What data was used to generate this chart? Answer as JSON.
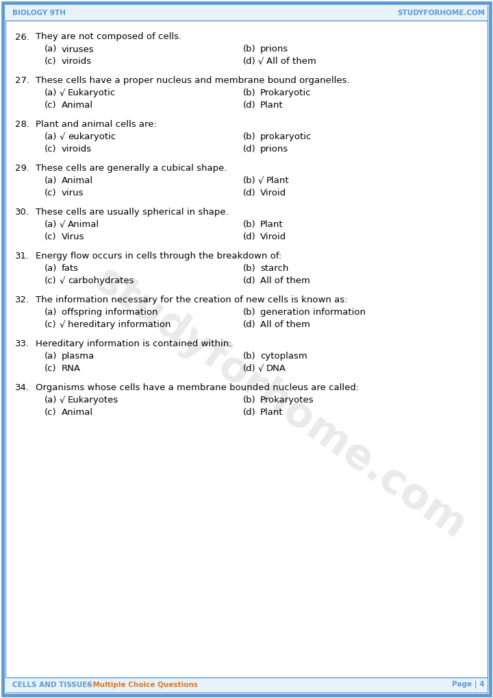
{
  "header_left": "Biology 9th",
  "header_right": "StudyForHome.com",
  "footer_left": "CELLS AND TISSUES",
  "footer_middle": " – Multiple Choice Questions",
  "footer_right": "Page | 4",
  "bg_color": "#ffffff",
  "border_color": "#5b9bd5",
  "header_bg": "#ddeeff",
  "footer_bg": "#ddeeff",
  "watermark_text": "studyforhome.com",
  "questions": [
    {
      "num": "26.",
      "question": "They are not composed of cells.",
      "options": [
        {
          "label": "(a)",
          "check": "",
          "text": "viruses"
        },
        {
          "label": "(b)",
          "check": "",
          "text": "prions"
        },
        {
          "label": "(c)",
          "check": "",
          "text": "viroids"
        },
        {
          "label": "(d)",
          "check": "√",
          "text": "All of them"
        }
      ]
    },
    {
      "num": "27.",
      "question": "These cells have a proper nucleus and membrane bound organelles.",
      "options": [
        {
          "label": "(a)",
          "check": "√",
          "text": "Eukaryotic"
        },
        {
          "label": "(b)",
          "check": "",
          "text": "Prokaryotic"
        },
        {
          "label": "(c)",
          "check": "",
          "text": "Animal"
        },
        {
          "label": "(d)",
          "check": "",
          "text": "Plant"
        }
      ]
    },
    {
      "num": "28.",
      "question": "Plant and animal cells are:",
      "options": [
        {
          "label": "(a)",
          "check": "√",
          "text": "eukaryotic"
        },
        {
          "label": "(b)",
          "check": "",
          "text": "prokaryotic"
        },
        {
          "label": "(c)",
          "check": "",
          "text": "viroids"
        },
        {
          "label": "(d)",
          "check": "",
          "text": "prions"
        }
      ]
    },
    {
      "num": "29.",
      "question": "These cells are generally a cubical shape.",
      "options": [
        {
          "label": "(a)",
          "check": "",
          "text": "Animal"
        },
        {
          "label": "(b)",
          "check": "√",
          "text": "Plant"
        },
        {
          "label": "(c)",
          "check": "",
          "text": "virus"
        },
        {
          "label": "(d)",
          "check": "",
          "text": "Viroid"
        }
      ]
    },
    {
      "num": "30.",
      "question": "These cells are usually spherical in shape.",
      "options": [
        {
          "label": "(a)",
          "check": "√",
          "text": "Animal"
        },
        {
          "label": "(b)",
          "check": "",
          "text": "Plant"
        },
        {
          "label": "(c)",
          "check": "",
          "text": "Virus"
        },
        {
          "label": "(d)",
          "check": "",
          "text": "Viroid"
        }
      ]
    },
    {
      "num": "31.",
      "question": "Energy flow occurs in cells through the breakdown of:",
      "options": [
        {
          "label": "(a)",
          "check": "",
          "text": "fats"
        },
        {
          "label": "(b)",
          "check": "",
          "text": "starch"
        },
        {
          "label": "(c)",
          "check": "√",
          "text": "carbohydrates"
        },
        {
          "label": "(d)",
          "check": "",
          "text": "All of them"
        }
      ]
    },
    {
      "num": "32.",
      "question": "The information necessary for the creation of new cells is known as:",
      "options": [
        {
          "label": "(a)",
          "check": "",
          "text": "offspring information"
        },
        {
          "label": "(b)",
          "check": "",
          "text": "generation information"
        },
        {
          "label": "(c)",
          "check": "√",
          "text": "hereditary information"
        },
        {
          "label": "(d)",
          "check": "",
          "text": "All of them"
        }
      ]
    },
    {
      "num": "33.",
      "question": "Hereditary information is contained within:",
      "options": [
        {
          "label": "(a)",
          "check": "",
          "text": "plasma"
        },
        {
          "label": "(b)",
          "check": "",
          "text": "cytoplasm"
        },
        {
          "label": "(c)",
          "check": "",
          "text": "RNA"
        },
        {
          "label": "(d)",
          "check": "√",
          "text": "DNA"
        }
      ]
    },
    {
      "num": "34.",
      "question": "Organisms whose cells have a membrane bounded nucleus are called:",
      "options": [
        {
          "label": "(a)",
          "check": "√",
          "text": "Eukaryotes"
        },
        {
          "label": "(b)",
          "check": "",
          "text": "Prokaryotes"
        },
        {
          "label": "(c)",
          "check": "",
          "text": "Animal"
        },
        {
          "label": "(d)",
          "check": "",
          "text": "Plant"
        }
      ]
    }
  ]
}
